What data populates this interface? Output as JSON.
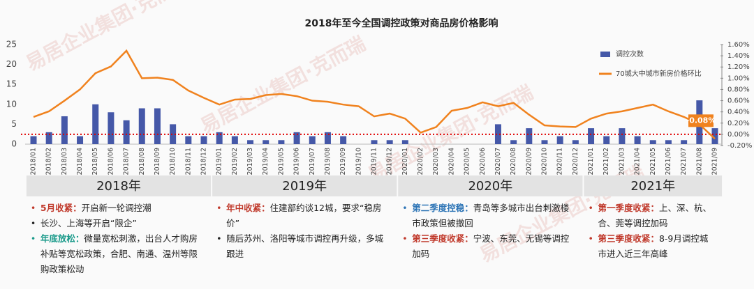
{
  "chart_data": {
    "type": "bar-line",
    "title": "2018年至今全国调控政策对商品房价格影响",
    "watermark": "易居企业集团·克而瑞",
    "categories": [
      "2018/01",
      "2018/02",
      "2018/03",
      "2018/04",
      "2018/05",
      "2018/06",
      "2018/07",
      "2018/08",
      "2018/09",
      "2018/10",
      "2018/11",
      "2018/12",
      "2019/01",
      "2019/02",
      "2019/03",
      "2019/04",
      "2019/05",
      "2019/06",
      "2019/07",
      "2019/08",
      "2019/09",
      "2019/10",
      "2019/11",
      "2019/12",
      "2020/01",
      "2020/02",
      "2020/03",
      "2020/04",
      "2020/05",
      "2020/06",
      "2020/07",
      "2020/08",
      "2020/09",
      "2020/10",
      "2020/11",
      "2020/12",
      "2021/01",
      "2021/02",
      "2021/03",
      "2021/04",
      "2021/05",
      "2021/06",
      "2021/07",
      "2021/08",
      "2021/09"
    ],
    "series": [
      {
        "name": "调控次数",
        "color": "#4558a8",
        "type": "bar",
        "values": [
          2,
          3,
          7,
          2,
          10,
          8,
          6,
          9,
          9,
          5,
          2,
          2,
          3,
          2,
          1,
          1,
          1,
          3,
          2,
          3,
          2,
          0,
          1,
          1,
          1,
          0,
          0,
          0,
          0,
          0,
          5,
          1,
          4,
          1,
          2,
          1,
          4,
          2,
          4,
          2,
          1,
          1,
          1,
          11,
          4
        ]
      },
      {
        "name": "70城大中城市新房价格环比",
        "color": "#f0821e",
        "type": "line",
        "axis": "y2",
        "values": [
          0.31,
          0.41,
          0.6,
          0.8,
          1.09,
          1.21,
          1.49,
          1.0,
          1.01,
          0.97,
          0.78,
          0.65,
          0.53,
          0.62,
          0.63,
          0.7,
          0.72,
          0.68,
          0.6,
          0.58,
          0.53,
          0.5,
          0.32,
          0.37,
          0.28,
          0.03,
          0.13,
          0.42,
          0.47,
          0.57,
          0.5,
          0.56,
          0.35,
          0.16,
          0.14,
          0.13,
          0.28,
          0.37,
          0.41,
          0.47,
          0.53,
          0.41,
          0.31,
          0.18,
          -0.08
        ],
        "value_labels": [
          null,
          null,
          null,
          null,
          null,
          null,
          null,
          null,
          null,
          null,
          null,
          null,
          null,
          null,
          null,
          null,
          null,
          null,
          null,
          null,
          null,
          null,
          null,
          null,
          null,
          null,
          null,
          null,
          null,
          null,
          null,
          null,
          null,
          null,
          null,
          null,
          null,
          null,
          null,
          null,
          null,
          null,
          null,
          null,
          "-0.08%"
        ]
      }
    ],
    "ylim": [
      0,
      25
    ],
    "yticks": [
      0,
      5,
      10,
      15,
      20,
      25
    ],
    "y2lim": [
      -0.2,
      1.6
    ],
    "y2ticks": [
      {
        "value": -0.2,
        "label": "-0.20%"
      },
      {
        "value": 0,
        "label": "0.00%"
      },
      {
        "value": 0.2,
        "label": "0.20%"
      },
      {
        "value": 0.4,
        "label": "0.40%"
      },
      {
        "value": 0.6,
        "label": "0.60%"
      },
      {
        "value": 0.8,
        "label": "0.80%"
      },
      {
        "value": 1.0,
        "label": "1.00%"
      },
      {
        "value": 1.2,
        "label": "1.20%"
      },
      {
        "value": 1.4,
        "label": "1.40%"
      },
      {
        "value": 1.6,
        "label": "1.60%"
      }
    ],
    "y2_reference": 0,
    "reference_color": "#e00000",
    "legend": "top-right",
    "periods": [
      {
        "label": "2018年",
        "notes": [
          {
            "lead": "5月收紧：",
            "text": "开启新一轮调控潮",
            "color": "#c0392b"
          },
          {
            "text": "长沙、上海等开启“限企”",
            "color": "#222222"
          },
          {
            "lead": "年底放松：",
            "text": "微量宽松刺激，出台人才购房补贴等宽松政策，合肥、南通、温州等限购政策松动",
            "color": "#1a9a8a"
          }
        ]
      },
      {
        "label": "2019年",
        "notes": [
          {
            "lead": "年中收紧：",
            "text": "住建部约谈12城，要求“稳房价”",
            "color": "#c0392b"
          },
          {
            "text": "随后苏州、洛阳等城市调控再升级，多城跟进",
            "color": "#222222"
          }
        ]
      },
      {
        "label": "2020年",
        "notes": [
          {
            "lead": "第二季度控稳：",
            "text": "青岛等多城市出台刺激楼市政策但被撤回",
            "color": "#2e75b6"
          },
          {
            "lead": "第三季度收紧：",
            "text": "宁波、东莞、无锡等调控加码",
            "color": "#c0392b"
          }
        ]
      },
      {
        "label": "2021年",
        "notes": [
          {
            "lead": "第一季度收紧：",
            "text": "上、深、杭、合、莞等调控加码",
            "color": "#c0392b"
          },
          {
            "lead": "第三季度收紧：",
            "text": "8-9月调控城市进入近三年高峰",
            "color": "#c0392b"
          }
        ]
      }
    ]
  }
}
